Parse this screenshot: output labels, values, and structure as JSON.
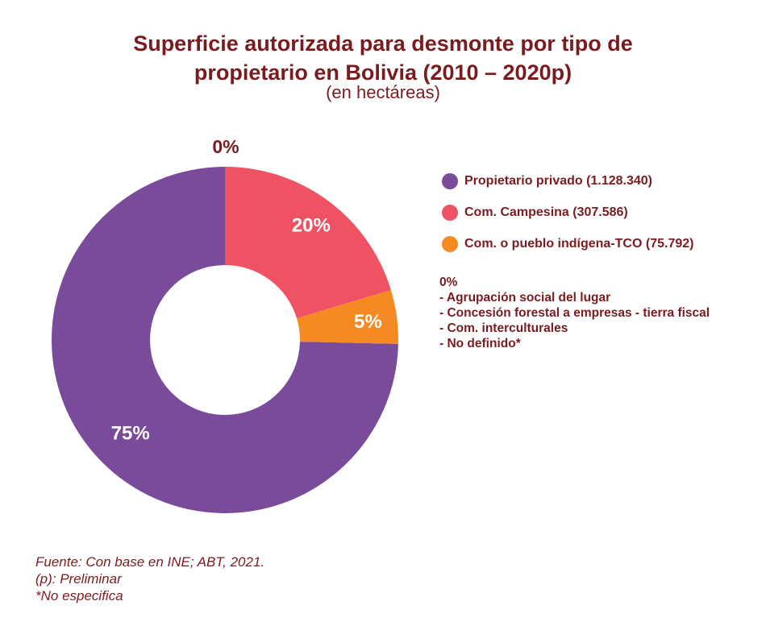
{
  "title": "Superficie autorizada para desmonte por tipo de\npropietario en Bolivia (2010 – 2020p)",
  "subtitle": "(en hectáreas)",
  "chart_data": {
    "type": "pie",
    "donut": true,
    "unit": "hectáreas",
    "series": [
      {
        "name": "Propietario privado",
        "value": 1128340,
        "percent_label": "75%",
        "color": "#7a4b9a"
      },
      {
        "name": "Com. Campesina",
        "value": 307586,
        "percent_label": "20%",
        "color": "#ee5263"
      },
      {
        "name": "Com. o pueblo indígena-TCO",
        "value": 75792,
        "percent_label": "5%",
        "color": "#f58a22"
      }
    ],
    "other_slice_label": "0%"
  },
  "legend": {
    "items": [
      {
        "label": "Propietario privado (1.128.340)",
        "color": "#7a4b9a"
      },
      {
        "label": "Com. Campesina (307.586)",
        "color": "#ee5263"
      },
      {
        "label": "Com. o pueblo indígena-TCO (75.792)",
        "color": "#f58a22"
      }
    ],
    "other": {
      "percent": "0%",
      "items": [
        "- Agrupación social del lugar",
        "- Concesión forestal a empresas - tierra fiscal",
        "- Com. interculturales",
        "- No definido*"
      ]
    }
  },
  "footer": {
    "source": "Fuente: Con base en INE; ABT, 2021.",
    "note_p": "(p): Preliminar",
    "note_star": "*No especifica"
  }
}
